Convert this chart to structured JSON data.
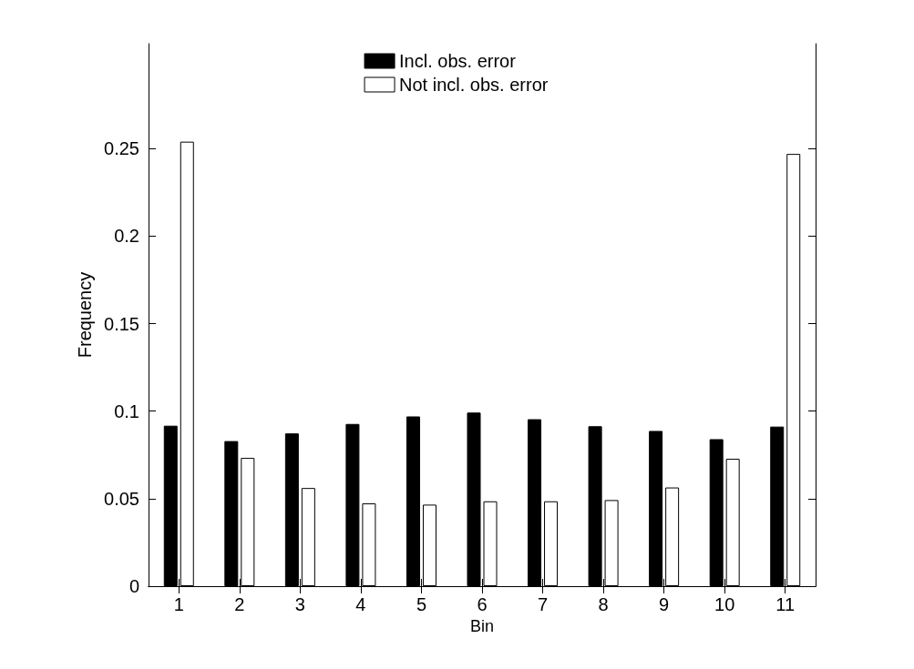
{
  "chart_data": {
    "type": "bar",
    "xlabel": "Bin",
    "ylabel": "Frequency",
    "categories": [
      "1",
      "2",
      "3",
      "4",
      "5",
      "6",
      "7",
      "8",
      "9",
      "10",
      "11"
    ],
    "series": [
      {
        "name": "Incl. obs. error",
        "color": "#000000",
        "values": [
          0.0917,
          0.0829,
          0.0873,
          0.0927,
          0.097,
          0.0992,
          0.0954,
          0.0914,
          0.0887,
          0.084,
          0.0912
        ]
      },
      {
        "name": "Not incl. obs. error",
        "color": "#ffffff",
        "values": [
          0.254,
          0.0733,
          0.0561,
          0.0473,
          0.0466,
          0.0485,
          0.0485,
          0.0492,
          0.0564,
          0.0728,
          0.247
        ]
      }
    ],
    "ylim": [
      0,
      0.31
    ],
    "yticks": [
      0,
      0.05,
      0.1,
      0.15,
      0.2,
      0.25
    ],
    "grid": false,
    "legend": "top"
  }
}
